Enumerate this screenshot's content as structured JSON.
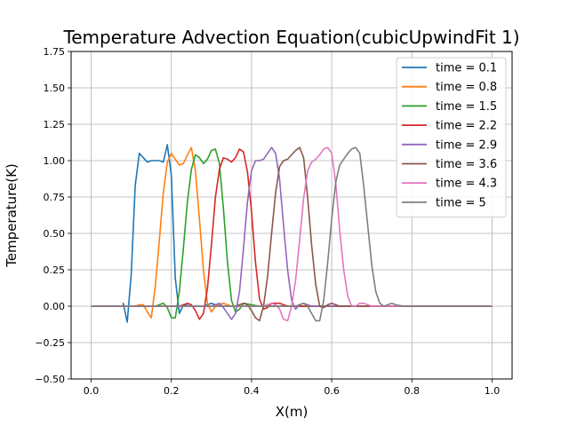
{
  "chart_data": {
    "type": "line",
    "title": "Temperature Advection Equation(cubicUpwindFit 1)",
    "xlabel": "X(m)",
    "ylabel": "Temperature(K)",
    "xlim": [
      -0.05,
      1.05
    ],
    "ylim": [
      -0.5,
      1.75
    ],
    "xticks": [
      0.0,
      0.2,
      0.4,
      0.6,
      0.8,
      1.0
    ],
    "xtick_labels": [
      "0.0",
      "0.2",
      "0.4",
      "0.6",
      "0.8",
      "1.0"
    ],
    "yticks": [
      -0.5,
      -0.25,
      0.0,
      0.25,
      0.5,
      0.75,
      1.0,
      1.25,
      1.5,
      1.75
    ],
    "ytick_labels": [
      "−0.50",
      "−0.25",
      "0.00",
      "0.25",
      "0.50",
      "0.75",
      "1.00",
      "1.25",
      "1.50",
      "1.75"
    ],
    "grid": true,
    "legend_position": "top-right",
    "series": [
      {
        "name": "time = 0.1",
        "color": "#1f77b4",
        "points": [
          [
            0,
            0
          ],
          [
            0.08,
            0
          ],
          [
            0.08,
            0.02
          ],
          [
            0.09,
            -0.11
          ],
          [
            0.1,
            0.22
          ],
          [
            0.11,
            0.83
          ],
          [
            0.12,
            1.05
          ],
          [
            0.13,
            1.02
          ],
          [
            0.14,
            0.99
          ],
          [
            0.15,
            1.0
          ],
          [
            0.17,
            1.0
          ],
          [
            0.18,
            0.99
          ],
          [
            0.19,
            1.11
          ],
          [
            0.2,
            0.9
          ],
          [
            0.21,
            0.19
          ],
          [
            0.22,
            -0.05
          ],
          [
            0.23,
            0.01
          ],
          [
            0.25,
            0
          ],
          [
            0.28,
            0
          ],
          [
            0.3,
            0.02
          ],
          [
            0.32,
            0
          ],
          [
            1.0,
            0
          ]
        ]
      },
      {
        "name": "time = 0.8",
        "color": "#ff7f0e",
        "points": [
          [
            0,
            0
          ],
          [
            0.11,
            0
          ],
          [
            0.12,
            0.01
          ],
          [
            0.13,
            0.01
          ],
          [
            0.14,
            -0.04
          ],
          [
            0.15,
            -0.08
          ],
          [
            0.16,
            0.14
          ],
          [
            0.17,
            0.45
          ],
          [
            0.18,
            0.78
          ],
          [
            0.19,
            0.99
          ],
          [
            0.2,
            1.05
          ],
          [
            0.21,
            1.01
          ],
          [
            0.22,
            0.97
          ],
          [
            0.23,
            0.98
          ],
          [
            0.24,
            1.04
          ],
          [
            0.25,
            1.09
          ],
          [
            0.26,
            0.93
          ],
          [
            0.27,
            0.6
          ],
          [
            0.28,
            0.25
          ],
          [
            0.29,
            0.02
          ],
          [
            0.3,
            -0.04
          ],
          [
            0.31,
            0
          ],
          [
            0.33,
            0.02
          ],
          [
            0.35,
            0
          ],
          [
            1.0,
            0
          ]
        ]
      },
      {
        "name": "time = 1.5",
        "color": "#2ca02c",
        "points": [
          [
            0,
            0
          ],
          [
            0.16,
            0
          ],
          [
            0.17,
            0.01
          ],
          [
            0.18,
            0.02
          ],
          [
            0.19,
            -0.01
          ],
          [
            0.2,
            -0.08
          ],
          [
            0.21,
            -0.08
          ],
          [
            0.22,
            0.1
          ],
          [
            0.23,
            0.4
          ],
          [
            0.24,
            0.72
          ],
          [
            0.25,
            0.94
          ],
          [
            0.26,
            1.04
          ],
          [
            0.27,
            1.02
          ],
          [
            0.28,
            0.98
          ],
          [
            0.29,
            1.01
          ],
          [
            0.3,
            1.07
          ],
          [
            0.31,
            1.08
          ],
          [
            0.32,
            0.98
          ],
          [
            0.33,
            0.67
          ],
          [
            0.34,
            0.3
          ],
          [
            0.35,
            0.04
          ],
          [
            0.36,
            -0.04
          ],
          [
            0.37,
            -0.02
          ],
          [
            0.38,
            0.02
          ],
          [
            0.4,
            0.01
          ],
          [
            0.42,
            0
          ],
          [
            1.0,
            0
          ]
        ]
      },
      {
        "name": "time = 2.2",
        "color": "#d62728",
        "points": [
          [
            0,
            0
          ],
          [
            0.22,
            0
          ],
          [
            0.23,
            0.01
          ],
          [
            0.24,
            0.02
          ],
          [
            0.25,
            0.01
          ],
          [
            0.26,
            -0.03
          ],
          [
            0.27,
            -0.09
          ],
          [
            0.28,
            -0.05
          ],
          [
            0.29,
            0.12
          ],
          [
            0.3,
            0.42
          ],
          [
            0.31,
            0.75
          ],
          [
            0.32,
            0.94
          ],
          [
            0.33,
            1.02
          ],
          [
            0.34,
            1.01
          ],
          [
            0.35,
            0.99
          ],
          [
            0.36,
            1.02
          ],
          [
            0.37,
            1.08
          ],
          [
            0.38,
            1.06
          ],
          [
            0.39,
            0.92
          ],
          [
            0.4,
            0.65
          ],
          [
            0.41,
            0.3
          ],
          [
            0.42,
            0.05
          ],
          [
            0.43,
            -0.02
          ],
          [
            0.44,
            -0.01
          ],
          [
            0.45,
            0.02
          ],
          [
            0.47,
            0.02
          ],
          [
            0.49,
            0
          ],
          [
            1.0,
            0
          ]
        ]
      },
      {
        "name": "time = 2.9",
        "color": "#9467bd",
        "points": [
          [
            0,
            0
          ],
          [
            0.3,
            0
          ],
          [
            0.31,
            0.01
          ],
          [
            0.32,
            0.02
          ],
          [
            0.33,
            -0.01
          ],
          [
            0.34,
            -0.05
          ],
          [
            0.35,
            -0.09
          ],
          [
            0.36,
            -0.05
          ],
          [
            0.37,
            0.1
          ],
          [
            0.38,
            0.4
          ],
          [
            0.39,
            0.72
          ],
          [
            0.4,
            0.93
          ],
          [
            0.41,
            1.0
          ],
          [
            0.42,
            1.0
          ],
          [
            0.43,
            1.01
          ],
          [
            0.44,
            1.05
          ],
          [
            0.45,
            1.09
          ],
          [
            0.46,
            1.05
          ],
          [
            0.47,
            0.87
          ],
          [
            0.48,
            0.55
          ],
          [
            0.49,
            0.25
          ],
          [
            0.5,
            0.04
          ],
          [
            0.51,
            -0.02
          ],
          [
            0.52,
            0.01
          ],
          [
            0.53,
            0.02
          ],
          [
            0.55,
            0
          ],
          [
            1.0,
            0
          ]
        ]
      },
      {
        "name": "time = 3.6",
        "color": "#8c564b",
        "points": [
          [
            0,
            0
          ],
          [
            0.36,
            0
          ],
          [
            0.37,
            0.01
          ],
          [
            0.38,
            0.02
          ],
          [
            0.39,
            0.01
          ],
          [
            0.4,
            -0.03
          ],
          [
            0.41,
            -0.08
          ],
          [
            0.42,
            -0.1
          ],
          [
            0.43,
            0.0
          ],
          [
            0.44,
            0.2
          ],
          [
            0.45,
            0.5
          ],
          [
            0.46,
            0.78
          ],
          [
            0.47,
            0.96
          ],
          [
            0.48,
            1.0
          ],
          [
            0.49,
            1.01
          ],
          [
            0.5,
            1.04
          ],
          [
            0.51,
            1.07
          ],
          [
            0.52,
            1.09
          ],
          [
            0.53,
            1.02
          ],
          [
            0.54,
            0.75
          ],
          [
            0.55,
            0.42
          ],
          [
            0.56,
            0.15
          ],
          [
            0.57,
            0.0
          ],
          [
            0.58,
            -0.01
          ],
          [
            0.59,
            0.01
          ],
          [
            0.6,
            0.02
          ],
          [
            0.62,
            0
          ],
          [
            1.0,
            0
          ]
        ]
      },
      {
        "name": "time = 4.3",
        "color": "#e377c2",
        "points": [
          [
            0,
            0
          ],
          [
            0.43,
            0
          ],
          [
            0.44,
            0.01
          ],
          [
            0.45,
            0.02
          ],
          [
            0.46,
            0.01
          ],
          [
            0.47,
            -0.02
          ],
          [
            0.48,
            -0.09
          ],
          [
            0.49,
            -0.1
          ],
          [
            0.5,
            0.0
          ],
          [
            0.51,
            0.18
          ],
          [
            0.52,
            0.45
          ],
          [
            0.53,
            0.74
          ],
          [
            0.54,
            0.93
          ],
          [
            0.55,
            0.99
          ],
          [
            0.56,
            1.01
          ],
          [
            0.57,
            1.04
          ],
          [
            0.58,
            1.08
          ],
          [
            0.59,
            1.09
          ],
          [
            0.6,
            1.05
          ],
          [
            0.61,
            0.85
          ],
          [
            0.62,
            0.52
          ],
          [
            0.63,
            0.25
          ],
          [
            0.64,
            0.07
          ],
          [
            0.65,
            0.0
          ],
          [
            0.66,
            0
          ],
          [
            0.67,
            0.02
          ],
          [
            0.68,
            0.02
          ],
          [
            0.7,
            0
          ],
          [
            1.0,
            0
          ]
        ]
      },
      {
        "name": "time = 5",
        "color": "#7f7f7f",
        "points": [
          [
            0,
            0
          ],
          [
            0.51,
            0
          ],
          [
            0.52,
            0.01
          ],
          [
            0.53,
            0.02
          ],
          [
            0.54,
            0
          ],
          [
            0.55,
            -0.05
          ],
          [
            0.56,
            -0.1
          ],
          [
            0.57,
            -0.1
          ],
          [
            0.58,
            0.04
          ],
          [
            0.59,
            0.3
          ],
          [
            0.6,
            0.6
          ],
          [
            0.61,
            0.85
          ],
          [
            0.62,
            0.97
          ],
          [
            0.63,
            1.01
          ],
          [
            0.64,
            1.05
          ],
          [
            0.65,
            1.08
          ],
          [
            0.66,
            1.09
          ],
          [
            0.67,
            1.05
          ],
          [
            0.68,
            0.82
          ],
          [
            0.69,
            0.55
          ],
          [
            0.7,
            0.28
          ],
          [
            0.71,
            0.1
          ],
          [
            0.72,
            0.02
          ],
          [
            0.73,
            0
          ],
          [
            0.74,
            0.01
          ],
          [
            0.75,
            0.02
          ],
          [
            0.76,
            0.01
          ],
          [
            0.78,
            0
          ],
          [
            1.0,
            0
          ]
        ]
      }
    ]
  }
}
